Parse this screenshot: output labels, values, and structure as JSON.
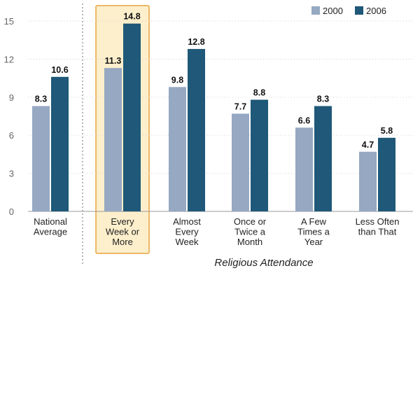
{
  "chart_data": {
    "type": "bar",
    "categories": [
      [
        "National",
        "Average"
      ],
      [
        "Every",
        "Week or",
        "More"
      ],
      [
        "Almost",
        "Every",
        "Week"
      ],
      [
        "Once or",
        "Twice a",
        "Month"
      ],
      [
        "A Few",
        "Times a",
        "Year"
      ],
      [
        "Less Often",
        "than That"
      ]
    ],
    "series": [
      {
        "name": "2000",
        "color": "#96a8c2",
        "values": [
          8.3,
          11.3,
          9.8,
          7.7,
          6.6,
          4.7
        ]
      },
      {
        "name": "2006",
        "color": "#1f5878",
        "values": [
          10.6,
          14.8,
          12.8,
          8.8,
          8.3,
          5.8
        ]
      }
    ],
    "title": "",
    "xlabel": "Religious Attendance",
    "ylabel": "",
    "ylim": [
      0,
      16
    ],
    "yticks": [
      0,
      3,
      6,
      9,
      12,
      15
    ],
    "grid": "dotted",
    "legend": "top-right",
    "highlight_category": 1,
    "highlight_color": "#e8a33e",
    "highlight_fill": "#fdefcc",
    "separator_after_category": 0
  }
}
